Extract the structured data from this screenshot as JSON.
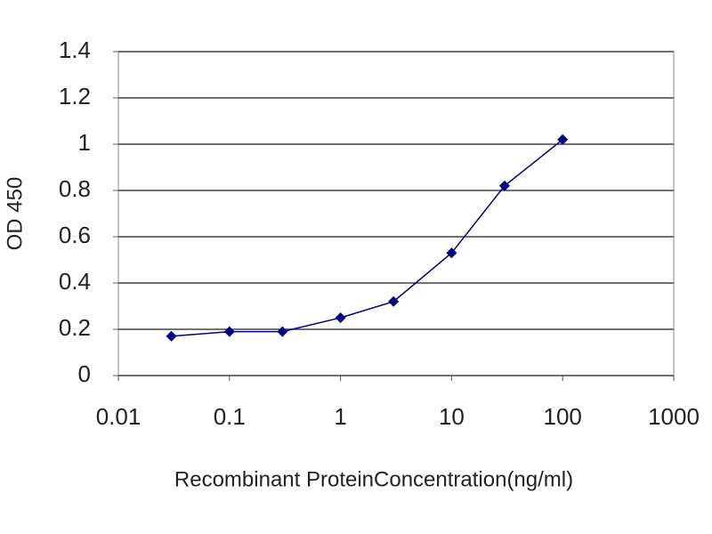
{
  "chart_data": {
    "type": "line",
    "xlabel": "Recombinant ProteinConcentration(ng/ml)",
    "ylabel": "OD 450",
    "x": [
      0.03,
      0.1,
      0.3,
      1,
      3,
      10,
      30,
      100
    ],
    "series": [
      {
        "name": "OD 450",
        "color": "#000080",
        "values": [
          0.17,
          0.19,
          0.19,
          0.25,
          0.32,
          0.53,
          0.82,
          1.02
        ]
      }
    ],
    "xlim": [
      0.01,
      1000
    ],
    "xticks": [
      0.01,
      0.1,
      1,
      10,
      100,
      1000
    ],
    "xscale": "log",
    "ylim": [
      0,
      1.4
    ],
    "yticks": [
      0,
      0.2,
      0.4,
      0.6,
      0.8,
      1,
      1.2,
      1.4
    ],
    "grid": true
  }
}
